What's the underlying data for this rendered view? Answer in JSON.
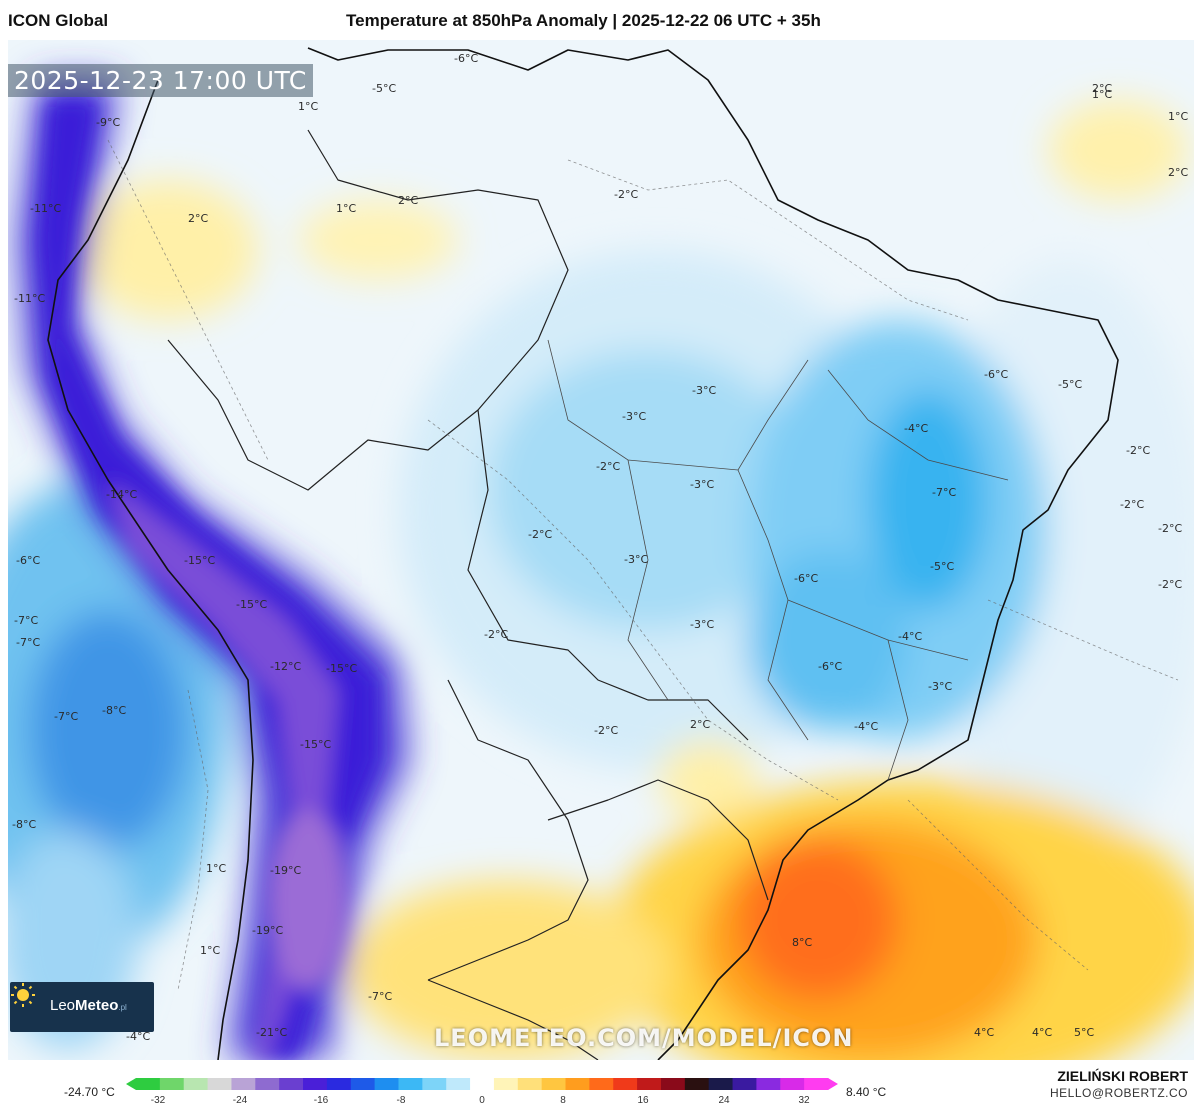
{
  "header": {
    "model_name": "ICON Global",
    "title": "Temperature at 850hPa Anomaly | 2025-12-22 06 UTC + 35h"
  },
  "map": {
    "timestamp": "2025-12-23 17:00 UTC",
    "watermark": "LEOMETEO.COM/MODEL/ICON",
    "logo": {
      "part1": "Leo",
      "part2": "Meteo",
      "suffix": ".pl"
    },
    "labels": [
      "-6°C",
      "-5°C",
      "1°C",
      "2°C",
      "1°C",
      "2°C",
      "-9°C",
      "-11°C",
      "2°C",
      "1°C",
      "2°C",
      "1°C",
      "-11°C",
      "-2°C",
      "-6°C",
      "-5°C",
      "-3°C",
      "-3°C",
      "-4°C",
      "-2°C",
      "-3°C",
      "-7°C",
      "-2°C",
      "-14°C",
      "-6°C",
      "-2°C",
      "-15°C",
      "-6°C",
      "-3°C",
      "-5°C",
      "-2°C",
      "-7°C",
      "-15°C",
      "-2°C",
      "-7°C",
      "-3°C",
      "-4°C",
      "-2°C",
      "-12°C",
      "-15°C",
      "-6°C",
      "-3°C",
      "-7°C",
      "-8°C",
      "2°C",
      "-2°C",
      "-15°C",
      "-4°C",
      "-8°C",
      "-2°C",
      "1°C",
      "-19°C",
      "8°C",
      "-19°C",
      "1°C",
      "-7°C",
      "-4°C",
      "-21°C",
      "4°C",
      "4°C",
      "5°C"
    ]
  },
  "legend": {
    "min_label": "-24.70 °C",
    "max_label": "8.40 °C",
    "ticks": [
      "-32",
      "-24",
      "-16",
      "-8",
      "0",
      "8",
      "16",
      "24",
      "32"
    ],
    "colors": [
      "#2ecc40",
      "#6fd66a",
      "#b8e6b0",
      "#d8d8d8",
      "#b9a3d6",
      "#8e6bd0",
      "#6a3fd0",
      "#4a1fd8",
      "#2a2ae0",
      "#1e5ae8",
      "#1e8ef0",
      "#3cb8f5",
      "#7dd4f8",
      "#bfe9fb",
      "#ffffff",
      "#fff4b8",
      "#ffe07a",
      "#ffc640",
      "#ff9d1e",
      "#ff6a1a",
      "#f03a1a",
      "#c01a1a",
      "#8a0a1a",
      "#2a1010",
      "#1a1a4a",
      "#3a1aa0",
      "#8a2ae0",
      "#d82ae8",
      "#ff3cf0"
    ]
  },
  "footer": {
    "author": "ZIELIŃSKI ROBERT",
    "email": "HELLO@ROBERTZ.CO"
  }
}
